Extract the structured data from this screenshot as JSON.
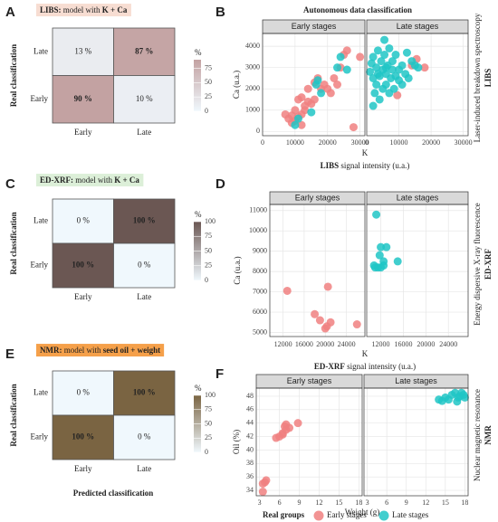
{
  "chart_data": [
    {
      "type": "heatmap",
      "panel": "A",
      "title": [
        "LIBS:",
        " model with ",
        "K + Ca"
      ],
      "title_color": "#f7ddd2",
      "xcategories": [
        "Early",
        "Late"
      ],
      "ycategories": [
        "Late",
        "Early"
      ],
      "ylabel": "Real classification",
      "values": [
        [
          13,
          87
        ],
        [
          90,
          10
        ]
      ],
      "value_labels": [
        [
          "13 %",
          "87 %"
        ],
        [
          "90 %",
          "10 %"
        ]
      ],
      "colors": [
        "#f0f8fd",
        "#c3a2a2"
      ],
      "colorbar_title": "%",
      "colorbar_lim": [
        0,
        90
      ],
      "colorbar_ticks": [
        0,
        25,
        50,
        75
      ]
    },
    {
      "type": "scatter",
      "panel": "B",
      "title": "Autonomous data classification",
      "xlabel": "K",
      "ylabel": "Ca (u.a.)",
      "caption": [
        "LIBS",
        " signal intensity (u.a.)"
      ],
      "side_label": [
        "Laser-induced breakdown spectroscopy",
        "LIBS"
      ],
      "xlim": [
        0,
        31500
      ],
      "ylim": [
        -200,
        4600
      ],
      "xticks": [
        0,
        10000,
        20000,
        30000
      ],
      "yticks": [
        0,
        1000,
        2000,
        3000,
        4000
      ],
      "grid": true,
      "facets": [
        {
          "title": "Early stages",
          "series": [
            {
              "x": [
                7000,
                8000,
                9000,
                10000,
                10000,
                11000,
                11000,
                12000,
                12000,
                13000,
                13000,
                14000,
                14000,
                15000,
                16000,
                16000,
                17000,
                18000,
                19000,
                20000,
                21000,
                22000,
                23000,
                24000,
                25000,
                26000,
                28000,
                30000,
                9000,
                12000
              ],
              "y": [
                800,
                600,
                750,
                500,
                1000,
                700,
                1500,
                800,
                1600,
                1200,
                1000,
                1400,
                2000,
                1300,
                2300,
                1500,
                2500,
                2000,
                2200,
                2000,
                1800,
                2500,
                2200,
                3000,
                3600,
                3800,
                200,
                3500,
                400,
                300
              ]
            },
            {
              "x": [
                10000,
                11000,
                15000,
                16500,
                18000,
                17000,
                23000,
                24000,
                26000
              ],
              "y": [
                300,
                600,
                900,
                2200,
                1800,
                2400,
                3000,
                3500,
                2900
              ]
            }
          ]
        },
        {
          "title": "Late stages",
          "series": [
            {
              "x": [
                9500,
                14000,
                18000,
                15500
              ],
              "y": [
                1700,
                3100,
                3000,
                3400
              ]
            },
            {
              "x": [
                1000,
                1500,
                2000,
                2000,
                2500,
                3000,
                3000,
                3500,
                4000,
                4000,
                4500,
                5000,
                5000,
                5500,
                5500,
                6000,
                6000,
                6500,
                7000,
                7000,
                7500,
                8000,
                8000,
                8500,
                9000,
                9000,
                10000,
                10000,
                11000,
                11000,
                12000,
                12500,
                13000,
                14000,
                15000,
                16000,
                2000,
                3500,
                6000
              ],
              "y": [
                2800,
                3200,
                2500,
                3500,
                1800,
                2200,
                3000,
                3800,
                2600,
                1500,
                3300,
                2900,
                2000,
                4300,
                3600,
                2700,
                2200,
                3100,
                1800,
                3900,
                2500,
                2900,
                3300,
                2000,
                2600,
                3600,
                2400,
                2900,
                3100,
                2200,
                2700,
                3700,
                2500,
                3300,
                3100,
                3000,
                1200,
                2700,
                3000
              ]
            }
          ]
        }
      ]
    },
    {
      "type": "heatmap",
      "panel": "C",
      "title": [
        "ED-XRF:",
        " model with ",
        "K + Ca"
      ],
      "title_color": "#dcefd8",
      "xcategories": [
        "Early",
        "Late"
      ],
      "ycategories": [
        "Late",
        "Early"
      ],
      "ylabel": "Real classification",
      "values": [
        [
          0,
          100
        ],
        [
          100,
          0
        ]
      ],
      "value_labels": [
        [
          "0 %",
          "100 %"
        ],
        [
          "100 %",
          "0 %"
        ]
      ],
      "colors": [
        "#f0f8fd",
        "#6b5753"
      ],
      "colorbar_title": "%",
      "colorbar_lim": [
        0,
        100
      ],
      "colorbar_ticks": [
        0,
        25,
        50,
        75,
        100
      ]
    },
    {
      "type": "scatter",
      "panel": "D",
      "xlabel": "K",
      "ylabel": "Ca (u.a.)",
      "caption": [
        "ED-XRF",
        " signal intensity (u.a.)"
      ],
      "side_label": [
        "Energy dispersive X-ray fluorescence",
        "ED-XRF"
      ],
      "xlim": [
        9500,
        27500
      ],
      "ylim": [
        4800,
        11300
      ],
      "xticks": [
        12000,
        16000,
        20000,
        24000
      ],
      "yticks": [
        5000,
        6000,
        7000,
        8000,
        9000,
        10000,
        11000
      ],
      "grid": true,
      "facets": [
        {
          "title": "Early stages",
          "series": [
            {
              "x": [
                12800,
                18000,
                19000,
                20000,
                20500,
                21000,
                26000,
                20300
              ],
              "y": [
                7050,
                5900,
                5600,
                5200,
                7250,
                5500,
                5400,
                5300
              ]
            },
            {
              "x": [],
              "y": []
            }
          ]
        },
        {
          "title": "Late stages",
          "series": [
            {
              "x": [],
              "y": []
            },
            {
              "x": [
                10800,
                11200,
                11500,
                11800,
                12000,
                12000,
                12500,
                12500,
                13000,
                15000,
                11000
              ],
              "y": [
                8300,
                10800,
                8200,
                8800,
                8200,
                9200,
                8300,
                8500,
                9200,
                8500,
                8200
              ]
            }
          ]
        }
      ]
    },
    {
      "type": "heatmap",
      "panel": "E",
      "title": [
        "NMR:",
        " model with ",
        "seed oil + weight"
      ],
      "title_color": "#f5a04a",
      "xcategories": [
        "Early",
        "Late"
      ],
      "ycategories": [
        "Late",
        "Early"
      ],
      "ylabel": "Real classification",
      "xcaption": "Predicted classification",
      "values": [
        [
          0,
          100
        ],
        [
          100,
          0
        ]
      ],
      "value_labels": [
        [
          "0 %",
          "100 %"
        ],
        [
          "100 %",
          "0 %"
        ]
      ],
      "colors": [
        "#f0f8fd",
        "#7a6442"
      ],
      "colorbar_title": "%",
      "colorbar_lim": [
        0,
        100
      ],
      "colorbar_ticks": [
        0,
        25,
        50,
        75,
        100
      ]
    },
    {
      "type": "scatter",
      "panel": "F",
      "xlabel": "Weight (g)",
      "ylabel": "Oil (%)",
      "side_label": [
        "Nuclear magnetic resonance",
        "NMR"
      ],
      "xlim": [
        2.5,
        18.5
      ],
      "ylim": [
        33.2,
        49.2
      ],
      "xticks": [
        3,
        6,
        9,
        12,
        15,
        18
      ],
      "yticks": [
        34,
        36,
        38,
        40,
        42,
        44,
        46,
        48
      ],
      "grid": true,
      "facets": [
        {
          "title": "Early stages",
          "series": [
            {
              "x": [
                3.5,
                3.8,
                4,
                3.5,
                5.5,
                6,
                6.5,
                6.8,
                7,
                7,
                7.5,
                8.8,
                6.5
              ],
              "y": [
                33.8,
                35.2,
                35.5,
                35,
                41.8,
                42,
                42.3,
                43.5,
                43.8,
                43,
                43.3,
                44,
                42.5
              ]
            },
            {
              "x": [],
              "y": []
            }
          ]
        },
        {
          "title": "Late stages",
          "series": [
            {
              "x": [],
              "y": []
            },
            {
              "x": [
                14,
                14.5,
                15,
                15.5,
                16,
                16.5,
                17,
                17.2,
                17.5,
                18,
                16.8,
                17.8
              ],
              "y": [
                47.5,
                47.3,
                47.8,
                47.5,
                48.2,
                48.5,
                47.8,
                48,
                48.5,
                47.8,
                47.2,
                48.2
              ]
            }
          ]
        }
      ]
    }
  ],
  "legend": {
    "title": "Real groups",
    "series": [
      {
        "name": "Early stages",
        "color": "#f08080"
      },
      {
        "name": "Late stages",
        "color": "#20c6c6"
      }
    ]
  }
}
